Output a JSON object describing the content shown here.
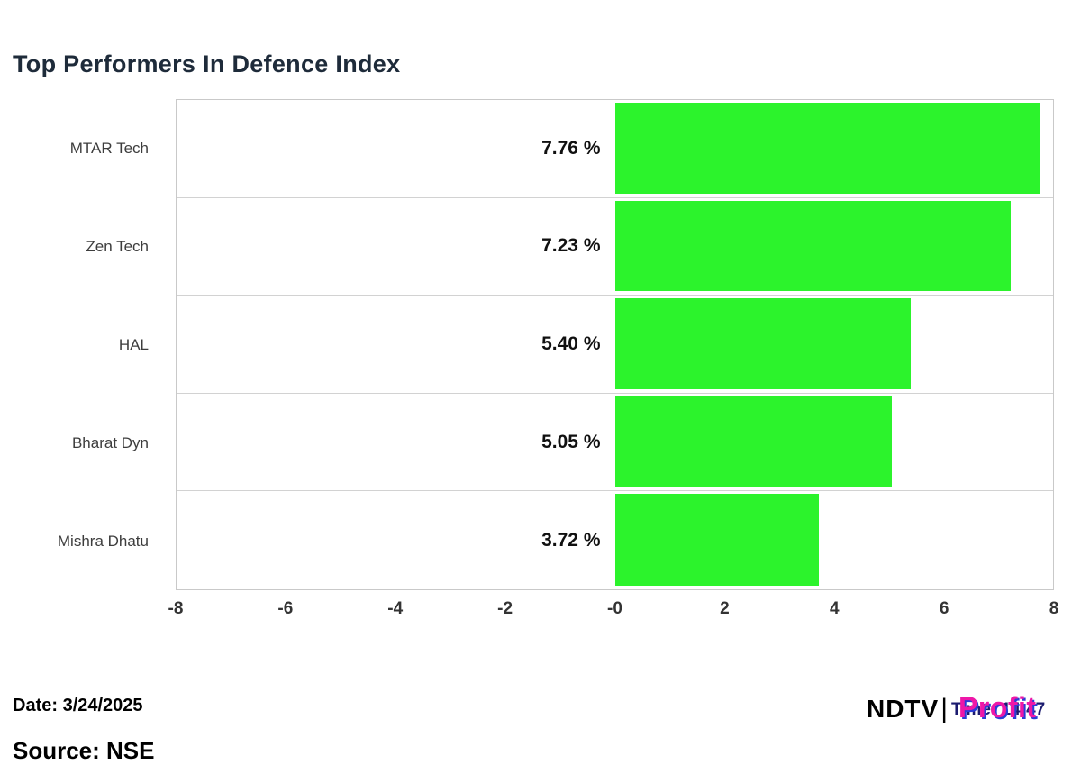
{
  "title": "Top Performers In Defence Index",
  "chart_data": {
    "type": "bar",
    "orientation": "horizontal",
    "title": "Top Performers In Defence Index",
    "categories": [
      "MTAR Tech",
      "Zen Tech",
      "HAL",
      "Bharat Dyn",
      "Mishra Dhatu"
    ],
    "values": [
      7.76,
      7.23,
      5.4,
      5.05,
      3.72
    ],
    "value_labels": [
      "7.76 %",
      "7.23 %",
      "5.40 %",
      "5.05 %",
      "3.72 %"
    ],
    "xlim": [
      -8,
      8
    ],
    "x_ticks": [
      "-8",
      "-6",
      "-4",
      "-2",
      "-0",
      "2",
      "4",
      "6",
      "8"
    ],
    "bar_color": "#2cf32c",
    "grid": "row-separators-only",
    "legend": "none"
  },
  "footer": {
    "date_label": "Date: 3/24/2025",
    "source_label": "Source: NSE",
    "logo": {
      "ndtv": "NDTV",
      "separator": "|",
      "time_text": "Time: 14:47",
      "profit": "Profit",
      "profit_color": "#ee17a8",
      "profit_shadow_color": "#2b3bd7"
    }
  }
}
